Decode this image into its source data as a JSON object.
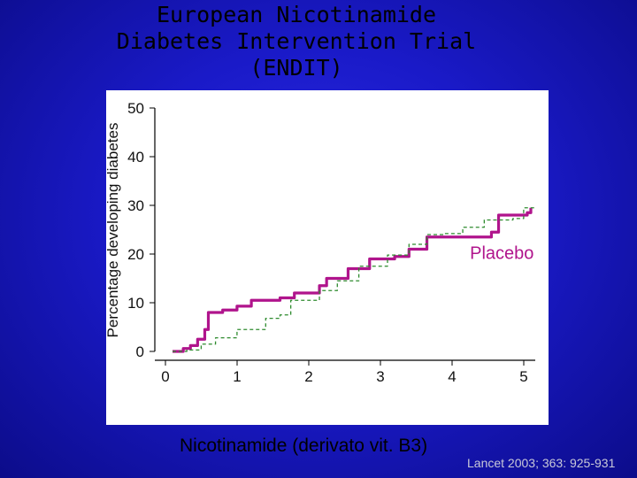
{
  "slide": {
    "title_lines": [
      "European Nicotinamide",
      "Diabetes Intervention Trial",
      "(ENDIT)"
    ],
    "footer": "Nicotinamide (derivato vit. B3)",
    "citation": "Lancet 2003; 363: 925-931"
  },
  "chart_data": {
    "type": "line",
    "title": "",
    "xlabel": "",
    "ylabel": "Percentage developing diabetes",
    "xlim": [
      0,
      5
    ],
    "ylim": [
      0,
      50
    ],
    "x_ticks": [
      0,
      1,
      2,
      3,
      4,
      5
    ],
    "y_ticks": [
      0,
      10,
      20,
      30,
      40,
      50
    ],
    "grid": false,
    "annotations": [
      {
        "text": "Placebo",
        "x": 4.15,
        "y": 19
      }
    ],
    "series": [
      {
        "name": "Placebo",
        "color": "#b0148c",
        "style": "solid",
        "points": [
          [
            0,
            0
          ],
          [
            0.15,
            0.6
          ],
          [
            0.25,
            1.2
          ],
          [
            0.35,
            2.5
          ],
          [
            0.45,
            4.5
          ],
          [
            0.5,
            8
          ],
          [
            0.7,
            8.5
          ],
          [
            0.9,
            9.3
          ],
          [
            1.1,
            10.5
          ],
          [
            1.5,
            11
          ],
          [
            1.7,
            12
          ],
          [
            2.05,
            13.5
          ],
          [
            2.15,
            15
          ],
          [
            2.45,
            17
          ],
          [
            2.75,
            19
          ],
          [
            3.1,
            19.5
          ],
          [
            3.3,
            21
          ],
          [
            3.55,
            23.5
          ],
          [
            4.0,
            23.5
          ],
          [
            4.45,
            24.5
          ],
          [
            4.55,
            28
          ],
          [
            4.95,
            28.5
          ],
          [
            5.0,
            29.5
          ]
        ]
      },
      {
        "name": "Nicotinamide",
        "color": "#2e8b2e",
        "style": "dashed",
        "points": [
          [
            0,
            0
          ],
          [
            0.2,
            0.3
          ],
          [
            0.4,
            1.5
          ],
          [
            0.6,
            2.8
          ],
          [
            0.9,
            4.5
          ],
          [
            1.3,
            6.8
          ],
          [
            1.5,
            7.5
          ],
          [
            1.65,
            10.5
          ],
          [
            2.05,
            12.5
          ],
          [
            2.3,
            14.5
          ],
          [
            2.6,
            17.5
          ],
          [
            3.0,
            19.8
          ],
          [
            3.3,
            22
          ],
          [
            3.55,
            24
          ],
          [
            3.8,
            24.2
          ],
          [
            4.05,
            25.5
          ],
          [
            4.35,
            27
          ],
          [
            4.75,
            27.3
          ],
          [
            4.9,
            29.5
          ],
          [
            5.05,
            29.8
          ]
        ]
      }
    ]
  }
}
